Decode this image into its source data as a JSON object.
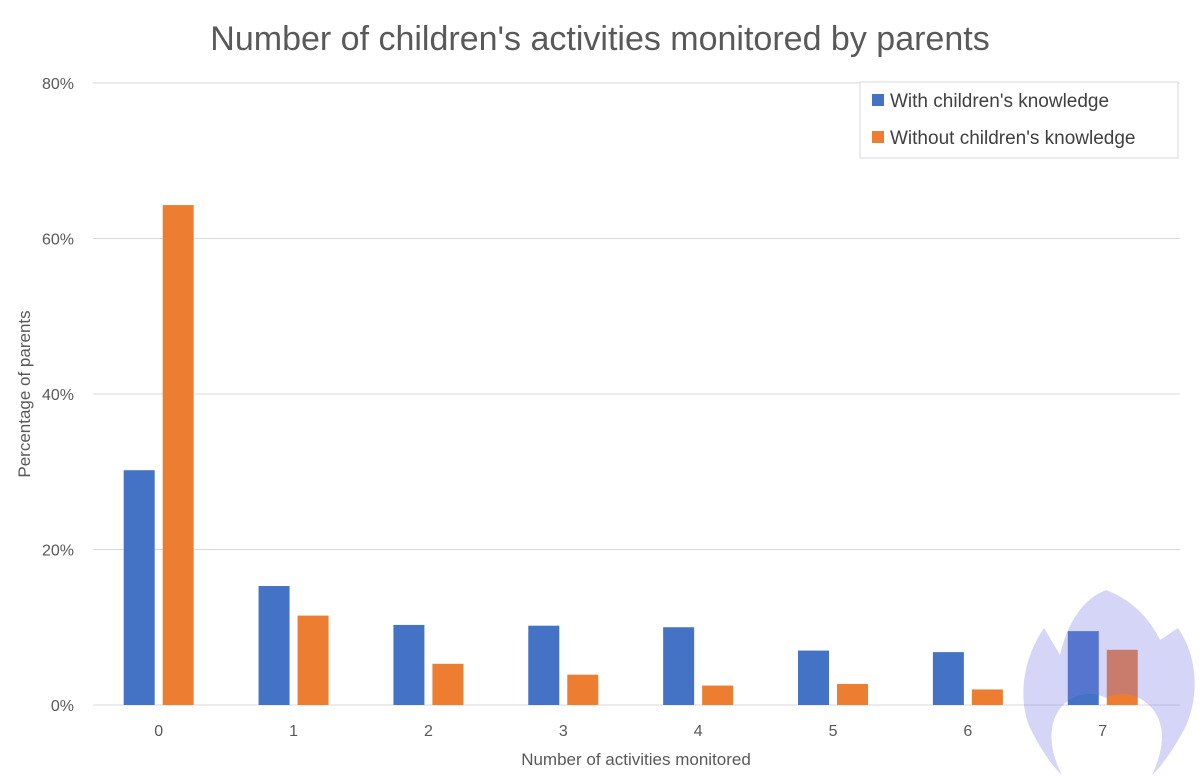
{
  "chart_data": {
    "type": "bar",
    "title": "Number of children's activities monitored by parents",
    "xlabel": "Number of activities monitored",
    "ylabel": "Percentage of parents",
    "categories": [
      "0",
      "1",
      "2",
      "3",
      "4",
      "5",
      "6",
      "7"
    ],
    "series": [
      {
        "name": "With children's knowledge",
        "color": "#4472C4",
        "values": [
          30.2,
          15.3,
          10.3,
          10.2,
          10.0,
          7.0,
          6.8,
          9.5
        ]
      },
      {
        "name": "Without children's knowledge",
        "color": "#ED7D31",
        "values": [
          64.3,
          11.5,
          5.3,
          3.9,
          2.5,
          2.7,
          2.0,
          7.1
        ]
      }
    ],
    "ylim": [
      0,
      80
    ],
    "yticks": [
      "0%",
      "20%",
      "40%",
      "60%",
      "80%"
    ],
    "ytick_values": [
      0,
      20,
      40,
      60,
      80
    ],
    "grid": true,
    "legend_position": "top-right",
    "watermark": "logo"
  }
}
